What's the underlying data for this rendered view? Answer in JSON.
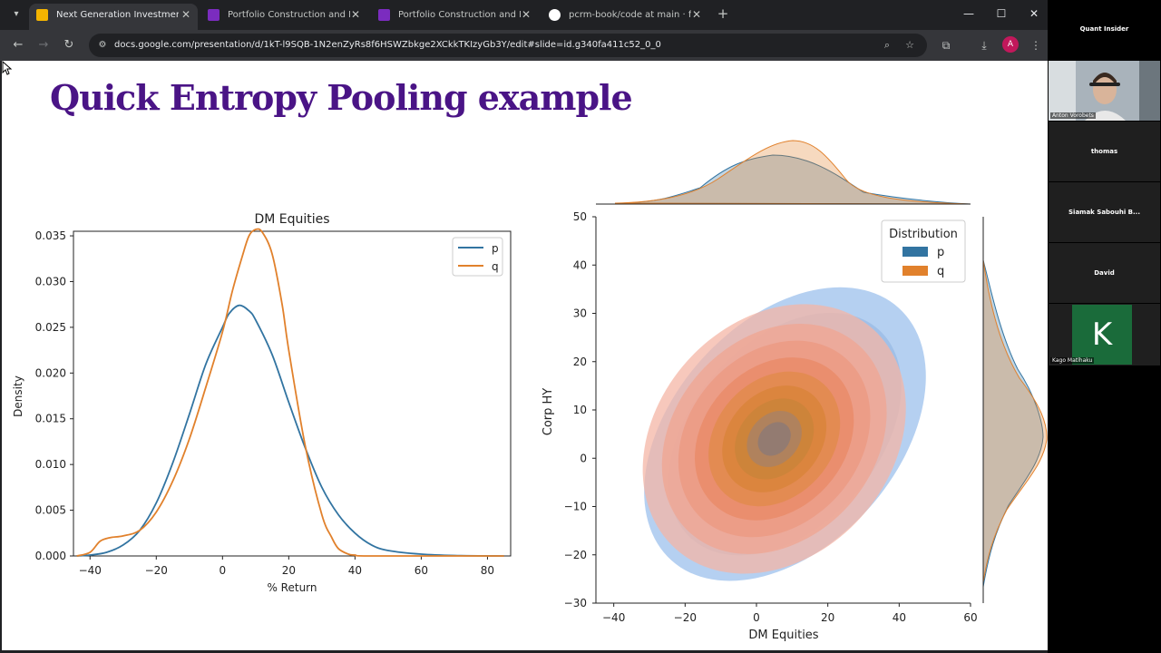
{
  "browser": {
    "tabs": [
      {
        "label": "Next Generation Investment Fr",
        "active": true,
        "favicon": "slides-icon",
        "color": "#f4b400"
      },
      {
        "label": "Portfolio Construction and Risk",
        "active": false,
        "favicon": "portal-icon",
        "color": "#7b2cbf"
      },
      {
        "label": "Portfolio Construction and Risk",
        "active": false,
        "favicon": "portal-icon",
        "color": "#7b2cbf"
      },
      {
        "label": "pcrm-book/code at main · forti",
        "active": false,
        "favicon": "github-icon",
        "color": "#ffffff"
      }
    ],
    "url": "docs.google.com/presentation/d/1kT-l9SQB-1N2enZyRs8f6HSWZbkge2XCkkTKIzyGb3Y/edit#slide=id.g340fa411c52_0_0",
    "profile_initial": "A"
  },
  "slide": {
    "title": "Quick Entropy Pooling example"
  },
  "chart_data": [
    {
      "type": "line",
      "title": "DM Equities",
      "xlabel": "% Return",
      "ylabel": "Density",
      "xlim": [
        -45,
        87
      ],
      "ylim": [
        0,
        0.0355
      ],
      "xticks": [
        -40,
        -20,
        0,
        20,
        40,
        60,
        80
      ],
      "yticks": [
        "0.000",
        "0.005",
        "0.010",
        "0.015",
        "0.020",
        "0.025",
        "0.030",
        "0.035"
      ],
      "legend": "top-right",
      "series": [
        {
          "name": "p",
          "color": "#3274a1",
          "x": [
            -44,
            -40,
            -35,
            -30,
            -25,
            -20,
            -15,
            -10,
            -5,
            0,
            2,
            5,
            8,
            10,
            15,
            20,
            25,
            30,
            35,
            40,
            45,
            50,
            60,
            70,
            85
          ],
          "y": [
            0,
            0.0001,
            0.0004,
            0.0012,
            0.0028,
            0.0058,
            0.0102,
            0.0155,
            0.021,
            0.025,
            0.0265,
            0.0274,
            0.0268,
            0.0258,
            0.022,
            0.0168,
            0.0118,
            0.0075,
            0.0045,
            0.0025,
            0.0012,
            0.0006,
            0.0002,
            5e-05,
            0
          ]
        },
        {
          "name": "q",
          "color": "#e1812c",
          "x": [
            -44,
            -40,
            -37,
            -34,
            -30,
            -25,
            -20,
            -15,
            -10,
            -5,
            0,
            3,
            6,
            8,
            10,
            12,
            15,
            18,
            20,
            25,
            30,
            33,
            35,
            38,
            40,
            45,
            85
          ],
          "y": [
            0,
            0.0004,
            0.0016,
            0.002,
            0.0022,
            0.0028,
            0.0048,
            0.0082,
            0.0128,
            0.0185,
            0.0245,
            0.029,
            0.0328,
            0.035,
            0.0357,
            0.0354,
            0.033,
            0.0275,
            0.0225,
            0.012,
            0.0045,
            0.002,
            0.0008,
            0.0002,
            0.0001,
            0,
            0
          ]
        }
      ]
    },
    {
      "type": "heatmap",
      "title": "",
      "xlabel": "DM Equities",
      "ylabel": "Corp HY",
      "xlim": [
        -45,
        60
      ],
      "ylim": [
        -30,
        50
      ],
      "xticks": [
        -40,
        -20,
        0,
        20,
        40,
        60
      ],
      "yticks": [
        -30,
        -20,
        -10,
        0,
        10,
        20,
        30,
        40,
        50
      ],
      "legend_title": "Distribution",
      "legend": "top-right",
      "series": [
        {
          "name": "p",
          "color": "#3274a1",
          "center": [
            8,
            5
          ],
          "sd": [
            18,
            14
          ],
          "corr": 0.6
        },
        {
          "name": "q",
          "color": "#e1812c",
          "center": [
            5,
            4
          ],
          "sd": [
            15,
            14
          ],
          "corr": 0.72
        }
      ]
    }
  ],
  "call": {
    "header": "Quant Insider",
    "participants": [
      {
        "name": "Anton Vorobets",
        "type": "video"
      },
      {
        "name": "thomas",
        "type": "tile"
      },
      {
        "name": "Siamak Sabouhi B...",
        "type": "tile"
      },
      {
        "name": "David",
        "type": "tile"
      },
      {
        "name": "Kago Matlhaku",
        "type": "avatar",
        "initial": "K"
      }
    ]
  }
}
